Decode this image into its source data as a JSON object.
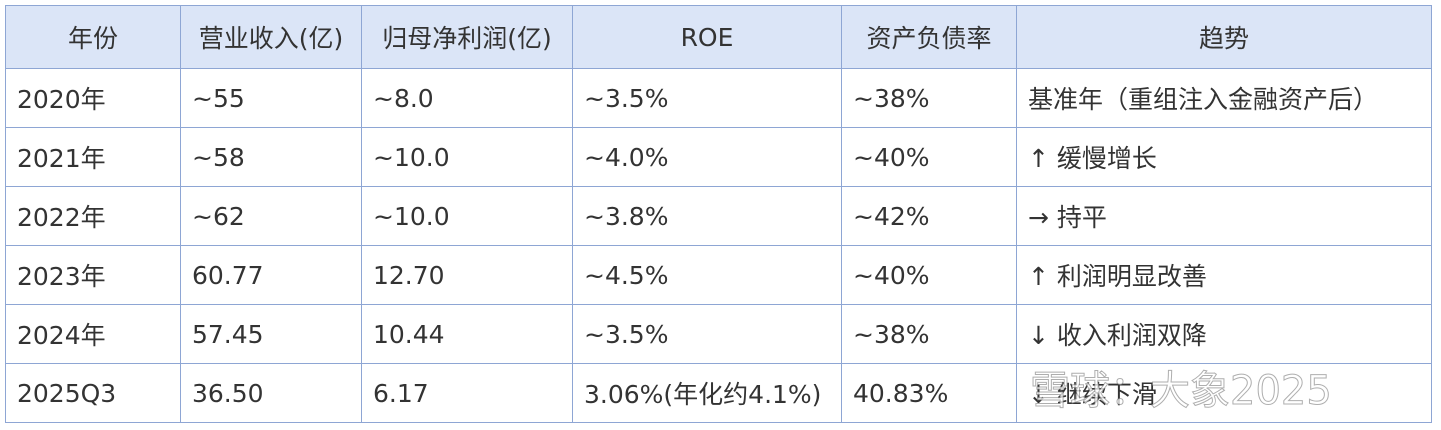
{
  "table": {
    "header": [
      "年份",
      "营业收入(亿)",
      "归母净利润(亿)",
      "ROE",
      "资产负债率",
      "趋势"
    ],
    "rows": [
      [
        "2020年",
        "~55",
        "~8.0",
        "~3.5%",
        "~38%",
        "基准年（重组注入金融资产后）"
      ],
      [
        "2021年",
        "~58",
        "~10.0",
        "~4.0%",
        "~40%",
        "↑ 缓慢增长"
      ],
      [
        "2022年",
        "~62",
        "~10.0",
        "~3.8%",
        "~42%",
        "→ 持平"
      ],
      [
        "2023年",
        "60.77",
        "12.70",
        "~4.5%",
        "~40%",
        "↑ 利润明显改善"
      ],
      [
        "2024年",
        "57.45",
        "10.44",
        "~3.5%",
        "~38%",
        "↓ 收入利润双降"
      ],
      [
        "2025Q3",
        "36.50",
        "6.17",
        "3.06%(年化约4.1%)",
        "40.83%",
        "↓ 继续下滑"
      ]
    ]
  },
  "watermark": "雪球：大象2025"
}
